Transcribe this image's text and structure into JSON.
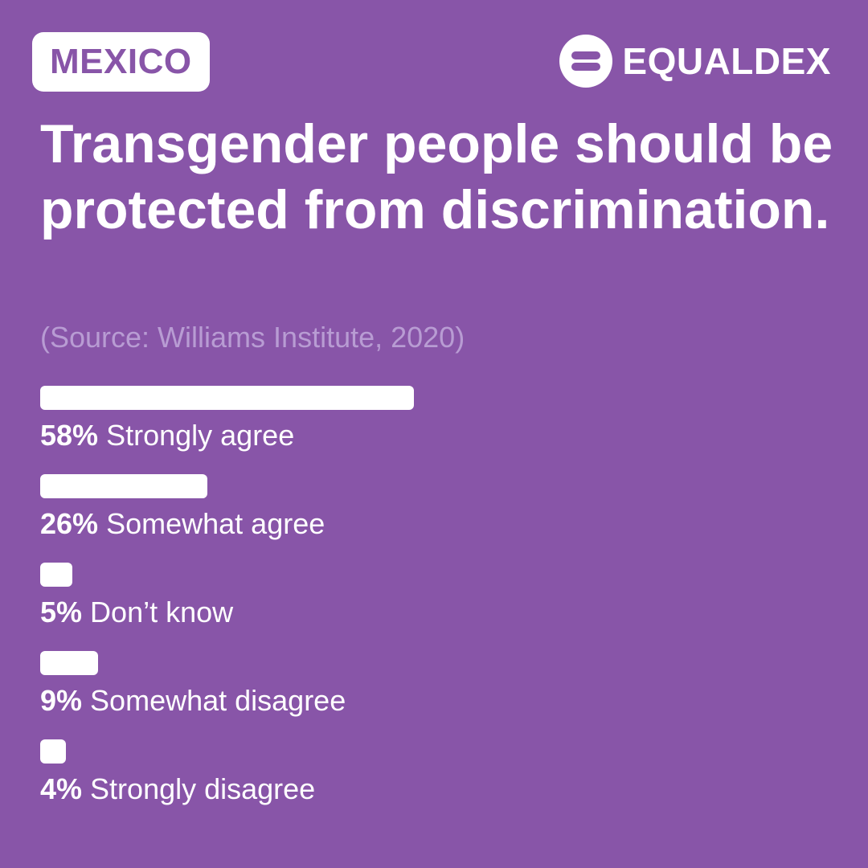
{
  "country": "MEXICO",
  "brand": {
    "name": "EQUALDEX",
    "icon": "equaldex-logo-icon"
  },
  "headline": "Transgender people should be protected from discrimination.",
  "source": "(Source: Williams Institute, 2020)",
  "colors": {
    "background": "#8855a8",
    "bar": "#ffffff",
    "text": "#ffffff",
    "source_text": "#b89cd3",
    "badge_text": "#8855a8"
  },
  "chart_data": {
    "type": "bar",
    "orientation": "horizontal",
    "title": "Transgender people should be protected from discrimination.",
    "unit": "%",
    "categories": [
      "Strongly agree",
      "Somewhat agree",
      "Don’t know",
      "Somewhat disagree",
      "Strongly disagree"
    ],
    "values": [
      58,
      26,
      5,
      9,
      4
    ],
    "value_labels": [
      "58%",
      "26%",
      "5%",
      "9%",
      "4%"
    ]
  }
}
